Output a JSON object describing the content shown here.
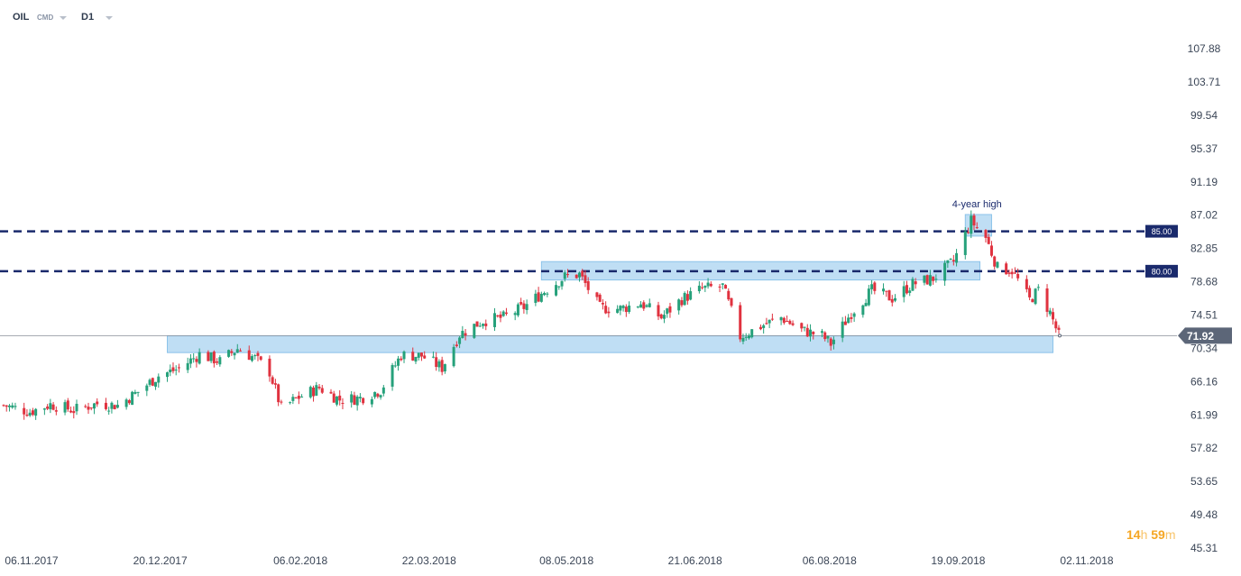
{
  "header": {
    "symbol": "OIL",
    "source": "CMD",
    "interval": "D1"
  },
  "countdown": {
    "hours": "14",
    "hours_unit": "h",
    "minutes": "59",
    "minutes_unit": "m"
  },
  "colors": {
    "up": "#26a17b",
    "down": "#e0323f",
    "zone": "#a9d3f0",
    "dashed_level": "#1a2a6c",
    "price_tag": "#5c6678"
  },
  "chart_data": {
    "type": "candlestick",
    "symbol": "OIL",
    "interval": "D1",
    "y_ticks": [
      "107.88",
      "103.71",
      "99.54",
      "95.37",
      "91.19",
      "87.02",
      "82.85",
      "78.68",
      "74.51",
      "70.34",
      "66.16",
      "61.99",
      "57.82",
      "53.65",
      "49.48",
      "45.31"
    ],
    "ylim": [
      45.31,
      107.88
    ],
    "x_ticks": [
      "06.11.2017",
      "20.12.2017",
      "06.02.2018",
      "22.03.2018",
      "08.05.2018",
      "21.06.2018",
      "06.08.2018",
      "19.09.2018",
      "02.11.2018"
    ],
    "x_range": [
      "2017-11-06",
      "2018-11-02"
    ],
    "current_price": "71.92",
    "levels": [
      {
        "label": "85.00",
        "value": 85.0
      },
      {
        "label": "80.00",
        "value": 80.0
      }
    ],
    "zones": [
      {
        "from": "2018-01-01",
        "to": "2018-10-31",
        "low": 69.8,
        "high": 71.9
      },
      {
        "from": "2018-05-09",
        "to": "2018-10-06",
        "low": 78.9,
        "high": 81.2
      },
      {
        "from": "2018-10-01",
        "to": "2018-10-10",
        "low": 84.4,
        "high": 87.1
      }
    ],
    "annotations": [
      {
        "text": "4-year high",
        "date": "2018-10-05",
        "value": 87.3
      }
    ],
    "series": [
      {
        "date": "2017-11-06",
        "close": 63.2
      },
      {
        "date": "2017-11-15",
        "close": 62.4
      },
      {
        "date": "2017-11-22",
        "close": 63.3
      },
      {
        "date": "2017-11-30",
        "close": 62.6
      },
      {
        "date": "2017-12-08",
        "close": 63.4
      },
      {
        "date": "2017-12-15",
        "close": 63.2
      },
      {
        "date": "2017-12-22",
        "close": 64.9
      },
      {
        "date": "2017-12-29",
        "close": 66.9
      },
      {
        "date": "2018-01-05",
        "close": 67.8
      },
      {
        "date": "2018-01-12",
        "close": 69.6
      },
      {
        "date": "2018-01-19",
        "close": 68.7
      },
      {
        "date": "2018-01-25",
        "close": 70.3
      },
      {
        "date": "2018-01-31",
        "close": 69.1
      },
      {
        "date": "2018-02-05",
        "close": 67.4
      },
      {
        "date": "2018-02-09",
        "close": 62.8
      },
      {
        "date": "2018-02-15",
        "close": 64.2
      },
      {
        "date": "2018-02-22",
        "close": 65.4
      },
      {
        "date": "2018-03-01",
        "close": 63.9
      },
      {
        "date": "2018-03-08",
        "close": 64.1
      },
      {
        "date": "2018-03-15",
        "close": 65.1
      },
      {
        "date": "2018-03-22",
        "close": 69.5
      },
      {
        "date": "2018-03-29",
        "close": 69.4
      },
      {
        "date": "2018-04-05",
        "close": 67.9
      },
      {
        "date": "2018-04-11",
        "close": 72.1
      },
      {
        "date": "2018-04-19",
        "close": 73.8
      },
      {
        "date": "2018-04-26",
        "close": 74.2
      },
      {
        "date": "2018-05-03",
        "close": 75.5
      },
      {
        "date": "2018-05-10",
        "close": 77.5
      },
      {
        "date": "2018-05-17",
        "close": 79.3
      },
      {
        "date": "2018-05-22",
        "close": 79.6
      },
      {
        "date": "2018-05-29",
        "close": 75.4
      },
      {
        "date": "2018-06-05",
        "close": 75.3
      },
      {
        "date": "2018-06-12",
        "close": 76.0
      },
      {
        "date": "2018-06-19",
        "close": 74.2
      },
      {
        "date": "2018-06-26",
        "close": 76.5
      },
      {
        "date": "2018-07-03",
        "close": 77.8
      },
      {
        "date": "2018-07-10",
        "close": 78.1
      },
      {
        "date": "2018-07-16",
        "close": 71.8
      },
      {
        "date": "2018-07-23",
        "close": 73.1
      },
      {
        "date": "2018-07-30",
        "close": 74.2
      },
      {
        "date": "2018-08-06",
        "close": 72.6
      },
      {
        "date": "2018-08-13",
        "close": 71.9
      },
      {
        "date": "2018-08-16",
        "close": 70.9
      },
      {
        "date": "2018-08-23",
        "close": 74.8
      },
      {
        "date": "2018-08-30",
        "close": 77.6
      },
      {
        "date": "2018-09-06",
        "close": 76.6
      },
      {
        "date": "2018-09-13",
        "close": 78.4
      },
      {
        "date": "2018-09-20",
        "close": 79.1
      },
      {
        "date": "2018-09-27",
        "close": 81.2
      },
      {
        "date": "2018-10-03",
        "close": 86.3
      },
      {
        "date": "2018-10-08",
        "close": 84.2
      },
      {
        "date": "2018-10-12",
        "close": 80.4
      },
      {
        "date": "2018-10-17",
        "close": 80.1
      },
      {
        "date": "2018-10-23",
        "close": 76.4
      },
      {
        "date": "2018-10-26",
        "close": 77.6
      },
      {
        "date": "2018-10-30",
        "close": 74.8
      },
      {
        "date": "2018-11-02",
        "close": 71.9
      }
    ]
  }
}
